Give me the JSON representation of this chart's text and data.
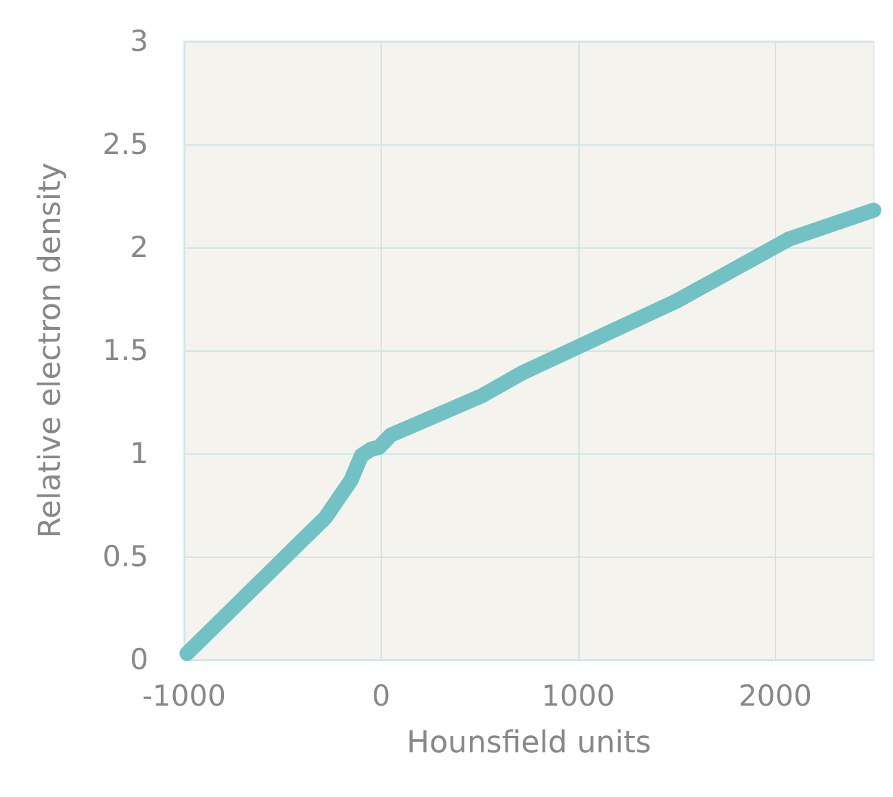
{
  "chart_data": {
    "type": "line",
    "xlabel": "Hounsfield units",
    "ylabel": "Relative electron density",
    "x": [
      -985,
      -282,
      -153,
      -100,
      -52,
      -11,
      50,
      172,
      511,
      714,
      1500,
      2069,
      2500
    ],
    "series": [
      {
        "color": "#72c1c4",
        "values": [
          0.03,
          0.69,
          0.87,
          0.99,
          1.02,
          1.03,
          1.09,
          1.14,
          1.28,
          1.39,
          1.74,
          2.04,
          2.18
        ]
      }
    ],
    "xlim": [
      -1000,
      2500
    ],
    "xticks": [
      -1000,
      0,
      1000,
      2000
    ],
    "ylim": [
      0,
      3
    ],
    "yticks": [
      0,
      0.5,
      1,
      1.5,
      2,
      2.5,
      3
    ],
    "grid": true,
    "line_style": "solid"
  }
}
